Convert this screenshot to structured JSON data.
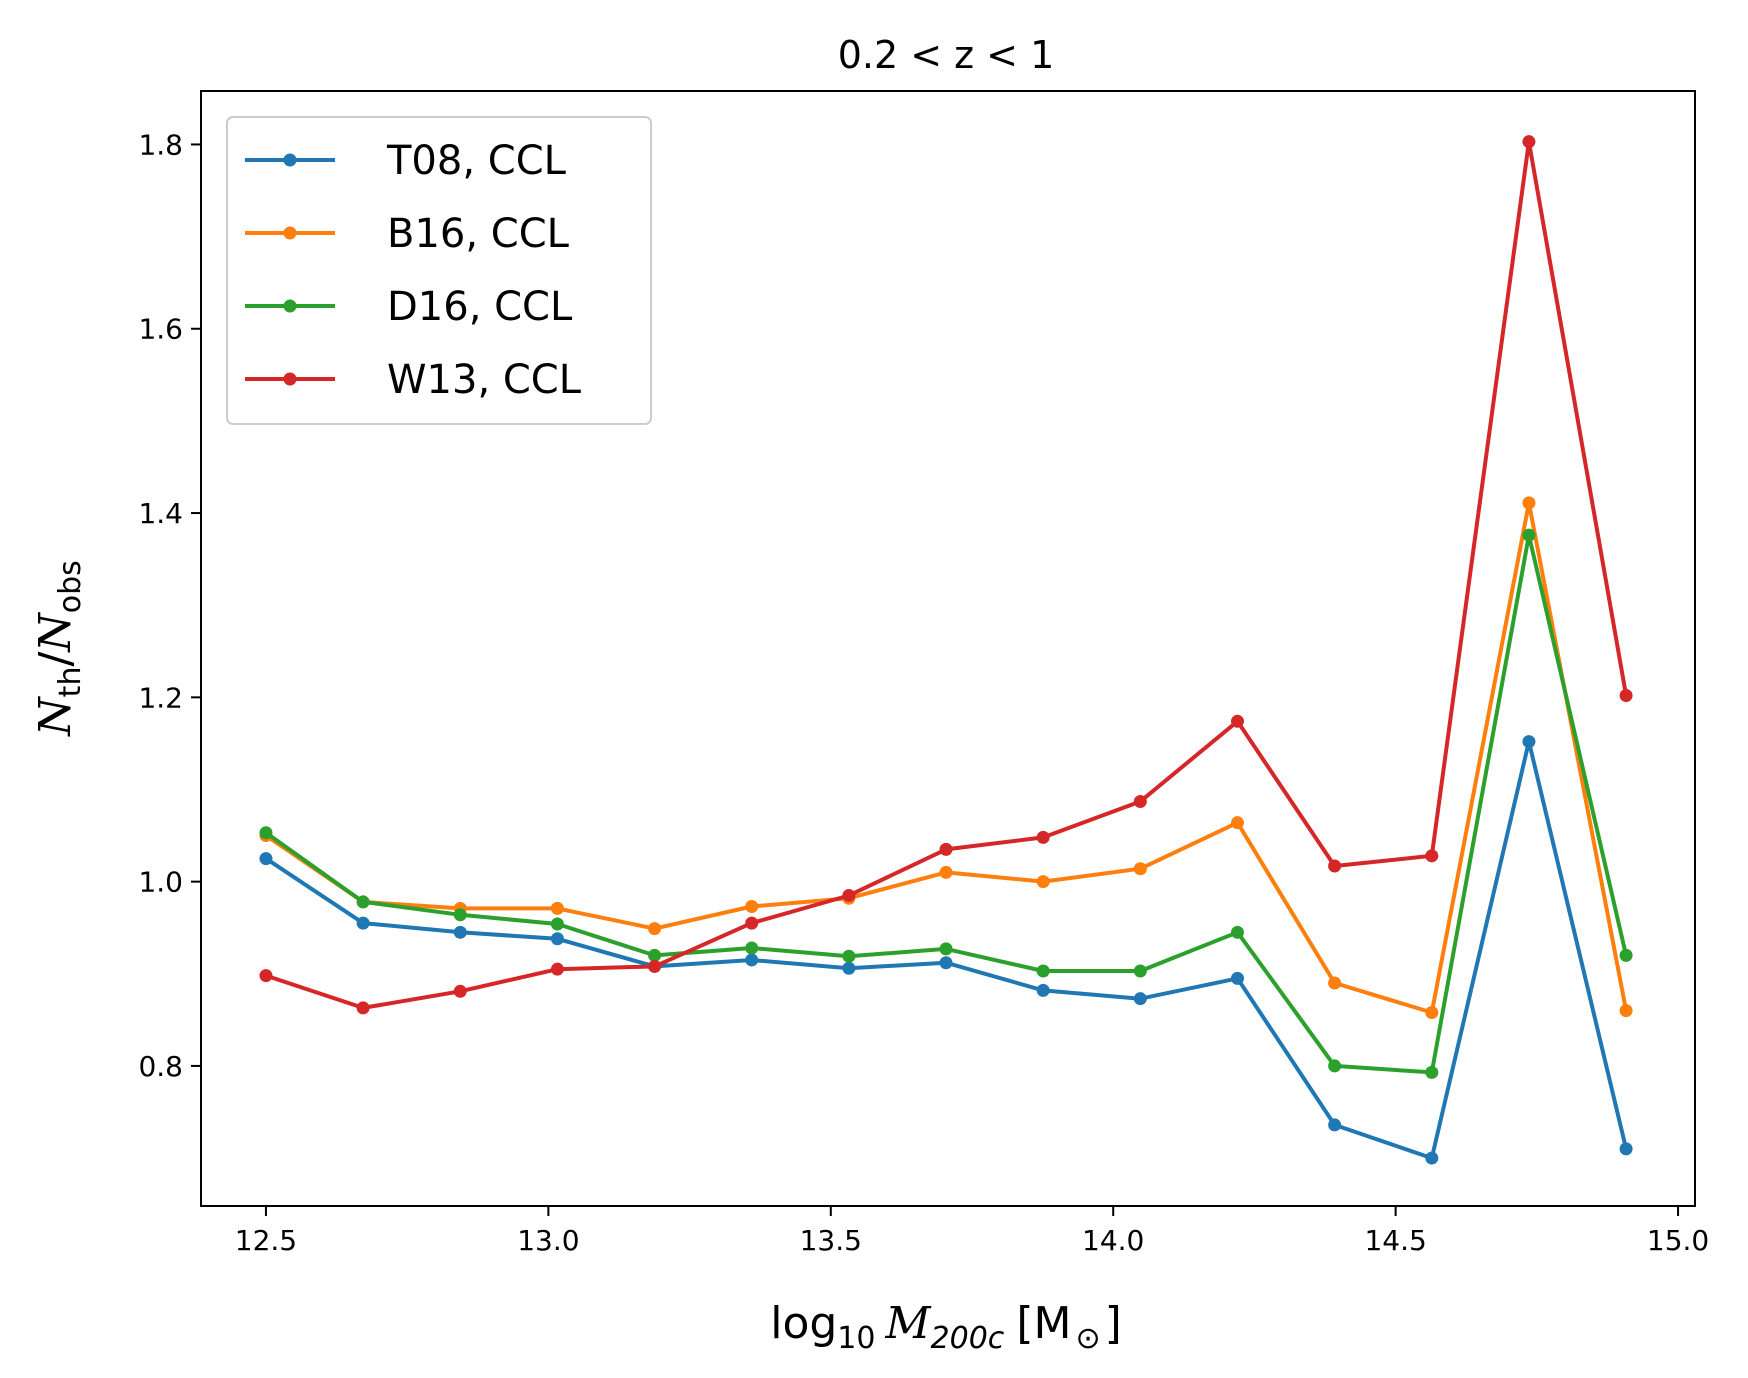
{
  "chart_data": {
    "type": "line",
    "title": "0.2 < z < 1",
    "xlabel": {
      "base": "log",
      "sub": "10",
      "var": "M",
      "var_sub": "200c",
      "unit": "[M",
      "unit_sym": "⊙",
      "close": "]"
    },
    "ylabel": {
      "n1": "N",
      "n1_sub": "th",
      "slash": "/",
      "n2": "N",
      "n2_sub": "obs"
    },
    "xlim": [
      12.385,
      15.03
    ],
    "ylim": [
      0.648,
      1.858
    ],
    "xticks": [
      12.5,
      13.0,
      13.5,
      14.0,
      14.5,
      15.0
    ],
    "xtick_labels": [
      "12.5",
      "13.0",
      "13.5",
      "14.0",
      "14.5",
      "15.0"
    ],
    "yticks": [
      0.8,
      1.0,
      1.2,
      1.4,
      1.6,
      1.8
    ],
    "ytick_labels": [
      "0.8",
      "1.0",
      "1.2",
      "1.4",
      "1.6",
      "1.8"
    ],
    "grid": false,
    "legend_position": "top-left",
    "x": [
      12.5,
      12.672,
      12.844,
      13.016,
      13.188,
      13.36,
      13.532,
      13.704,
      13.876,
      14.048,
      14.22,
      14.392,
      14.564,
      14.736,
      14.908
    ],
    "series": [
      {
        "name": "T08, CCL",
        "color": "#1f77b4",
        "values": [
          1.025,
          0.955,
          0.945,
          0.938,
          0.908,
          0.915,
          0.906,
          0.912,
          0.882,
          0.873,
          0.895,
          0.736,
          0.7,
          1.152,
          0.71
        ]
      },
      {
        "name": "B16, CCL",
        "color": "#ff7f0e",
        "values": [
          1.05,
          0.978,
          0.971,
          0.971,
          0.949,
          0.973,
          0.982,
          1.01,
          1.0,
          1.014,
          1.064,
          0.89,
          0.858,
          1.411,
          0.86
        ]
      },
      {
        "name": "D16, CCL",
        "color": "#2ca02c",
        "values": [
          1.053,
          0.978,
          0.964,
          0.954,
          0.92,
          0.928,
          0.919,
          0.927,
          0.903,
          0.903,
          0.945,
          0.8,
          0.793,
          1.376,
          0.92
        ]
      },
      {
        "name": "W13, CCL",
        "color": "#d62728",
        "values": [
          0.898,
          0.863,
          0.881,
          0.905,
          0.908,
          0.955,
          0.985,
          1.035,
          1.048,
          1.087,
          1.174,
          1.017,
          1.028,
          1.803,
          1.202
        ]
      }
    ]
  }
}
